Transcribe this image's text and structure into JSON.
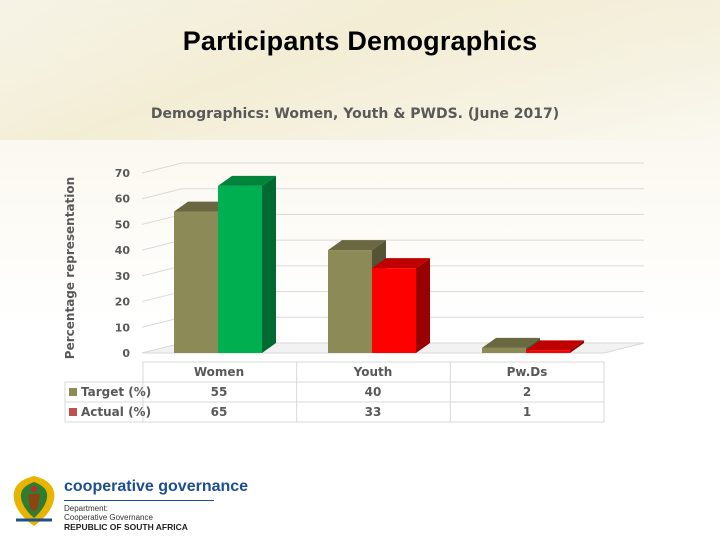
{
  "slide": {
    "title": "Participants Demographics"
  },
  "chart_data": {
    "type": "bar",
    "title": "Demographics: Women, Youth & PWDS. (June 2017)",
    "xlabel": "",
    "ylabel": "Percentage representation",
    "ylim": [
      0,
      70
    ],
    "yticks": [
      0,
      10,
      20,
      30,
      40,
      50,
      60,
      70
    ],
    "categories": [
      "Women",
      "Youth",
      "Pw.Ds"
    ],
    "series": [
      {
        "name": "Target (%)",
        "values": [
          55,
          40,
          2
        ],
        "color": "#8c8a56"
      },
      {
        "name": "Actual (%)",
        "values": [
          65,
          33,
          1
        ],
        "color_by_category": [
          "#00b050",
          "#ff0000",
          "#ff0000"
        ]
      }
    ],
    "legend_colors": [
      "#8c8a56",
      "#c0504d"
    ],
    "grid": true,
    "style": "3d-clustered-column with data table"
  },
  "footer": {
    "brand": "cooperative governance",
    "line1": "Department:",
    "line2": "Cooperative Governance",
    "line3": "REPUBLIC OF SOUTH AFRICA"
  }
}
